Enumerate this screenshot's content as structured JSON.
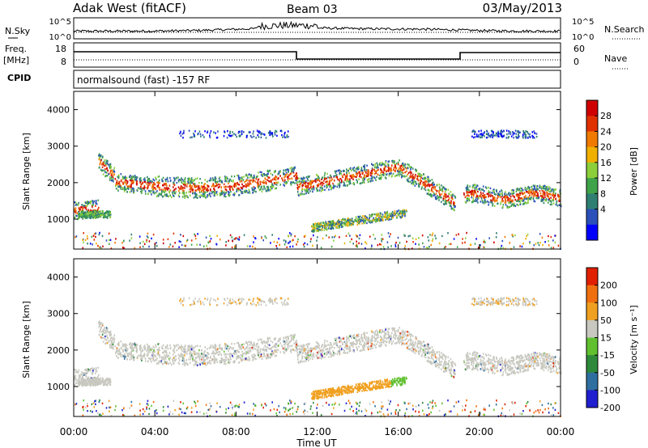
{
  "header": {
    "station": "Adak West (fitACF)",
    "beam": "Beam 03",
    "date": "03/May/2013"
  },
  "top_panel": {
    "left_label": "N.Sky",
    "right_label": "N.Search",
    "left_ticks": [
      "10^5",
      "10^0"
    ],
    "right_ticks": [
      "10^5",
      "10^0"
    ]
  },
  "freq_panel": {
    "left_label_1": "Freq.",
    "left_label_2": "[MHz]",
    "right_label": "Nave",
    "left_ticks": [
      "18",
      "8"
    ],
    "right_ticks": [
      "60",
      "0"
    ]
  },
  "cpid_panel": {
    "label": "CPID",
    "text": "normalsound (fast) -157 RF"
  },
  "chart_data": [
    {
      "type": "heatmap",
      "name": "power",
      "ylabel": "Slant Range [km]",
      "yticks": [
        "1000",
        "2000",
        "3000",
        "4000"
      ],
      "colorbar_label": "Power [dB]",
      "colorbar_ticks": [
        "4",
        "8",
        "12",
        "16",
        "20",
        "24",
        "28"
      ],
      "colors": [
        "#0000ff",
        "#2b50ba",
        "#2f7f72",
        "#3fa34a",
        "#8ccf3a",
        "#f0b000",
        "#f07a00",
        "#e03000",
        "#d00000"
      ]
    },
    {
      "type": "heatmap",
      "name": "velocity",
      "ylabel": "Slant Range [km]",
      "yticks": [
        "1000",
        "2000",
        "3000",
        "4000"
      ],
      "colorbar_label": "Velocity [m s⁻¹]",
      "colorbar_ticks": [
        "200",
        "100",
        "50",
        "15",
        "-15",
        "-50",
        "-100",
        "-200"
      ],
      "colors": [
        "#2020d0",
        "#2f6fa0",
        "#2e8a3a",
        "#60c030",
        "#c8c8c0",
        "#f0a020",
        "#f07010",
        "#e02000"
      ]
    }
  ],
  "xaxis": {
    "ticks": [
      "00:00",
      "04:00",
      "08:00",
      "12:00",
      "16:00",
      "20:00",
      "00:00"
    ],
    "label": "Time UT"
  }
}
